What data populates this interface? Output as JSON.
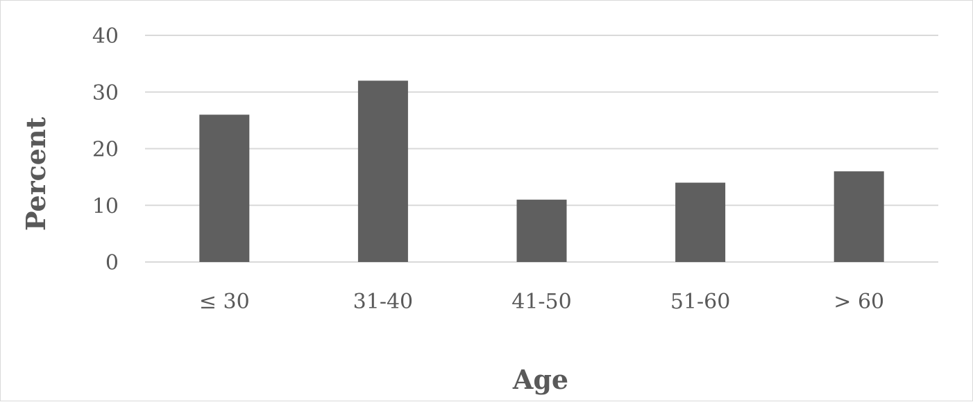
{
  "chart_data": {
    "type": "bar",
    "categories": [
      "≤ 30",
      "31-40",
      "41-50",
      "51-60",
      "> 60"
    ],
    "values": [
      26,
      32,
      11,
      14,
      16
    ],
    "xlabel": "Age",
    "ylabel": "Percent",
    "ylim": [
      0,
      40
    ],
    "yticks": [
      0,
      10,
      20,
      30,
      40
    ],
    "grid": true,
    "bar_color": "#5f5f5f",
    "grid_color": "#d9d9d9"
  }
}
